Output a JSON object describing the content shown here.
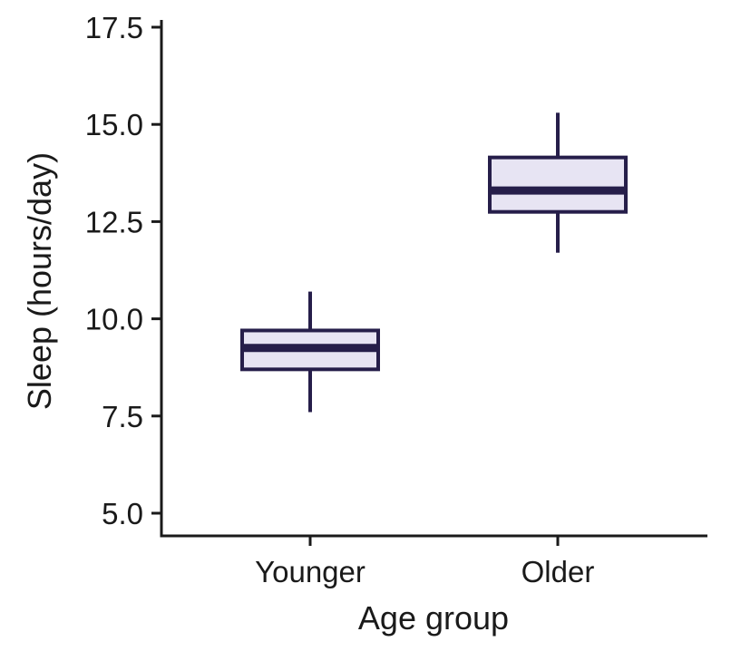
{
  "chart_data": {
    "type": "box",
    "xlabel": "Age group",
    "ylabel": "Sleep (hours/day)",
    "ylim": [
      4.4,
      17.6
    ],
    "yticks": [
      5.0,
      7.5,
      10.0,
      12.5,
      15.0,
      17.5
    ],
    "ytick_labels": [
      "5.0",
      "7.5",
      "10.0",
      "12.5",
      "15.0",
      "17.5"
    ],
    "grid": false,
    "legend": "none",
    "categories": [
      "Younger",
      "Older"
    ],
    "boxes": [
      {
        "category": "Younger",
        "whisker_low": 7.6,
        "q1": 8.7,
        "median": 9.25,
        "q3": 9.7,
        "whisker_high": 10.7
      },
      {
        "category": "Older",
        "whisker_low": 11.7,
        "q1": 12.75,
        "median": 13.3,
        "q3": 14.15,
        "whisker_high": 15.3
      }
    ],
    "colors": {
      "box_fill": "#e7e4f3",
      "box_edge": "#261e4a",
      "axis": "#1a1a1a"
    }
  }
}
